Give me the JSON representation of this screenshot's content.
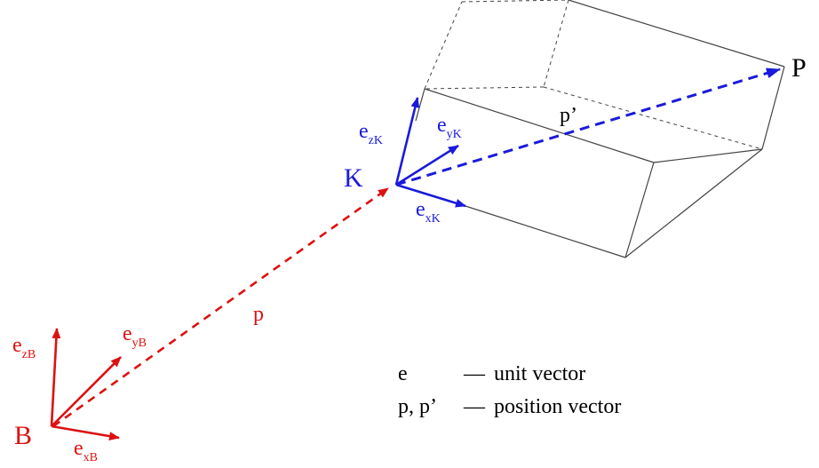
{
  "colors": {
    "base_frame": "#dd1111",
    "local_frame": "#1a1adc",
    "box": "#444444",
    "text": "#000000"
  },
  "points": {
    "B": "B",
    "K": "K",
    "P": "P"
  },
  "vectors": {
    "p": "p",
    "p_prime": "p’"
  },
  "base_axes": [
    {
      "main": "e",
      "sub": "zB"
    },
    {
      "main": "e",
      "sub": "yB"
    },
    {
      "main": "e",
      "sub": "xB"
    }
  ],
  "local_axes": [
    {
      "main": "e",
      "sub": "zK"
    },
    {
      "main": "e",
      "sub": "yK"
    },
    {
      "main": "e",
      "sub": "xK"
    }
  ],
  "legend": [
    {
      "symbol": "e",
      "dash": "––",
      "text": "unit vector"
    },
    {
      "symbol": "p, p’",
      "dash": "––",
      "text": "position vector"
    }
  ]
}
